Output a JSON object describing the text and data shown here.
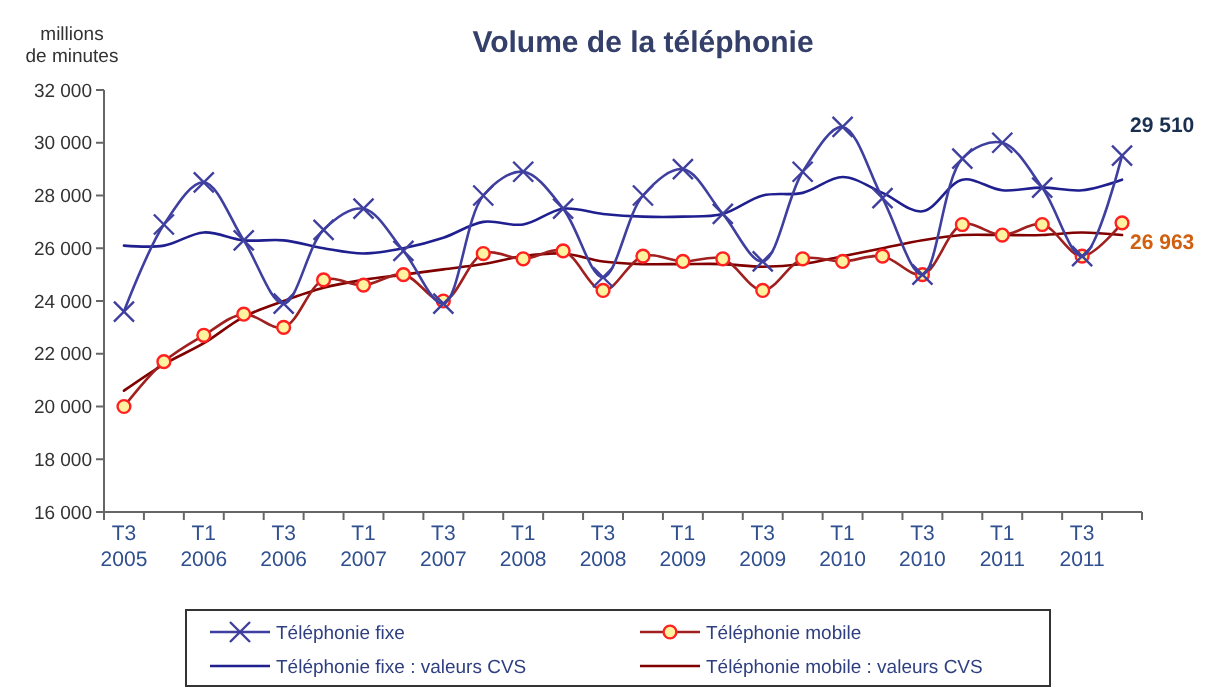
{
  "chart_data": {
    "type": "line",
    "title": "Volume de la téléphonie",
    "ylabel": "millions\nde minutes",
    "categories": [
      "T3\n2005",
      null,
      "T1\n2006",
      null,
      "T3\n2006",
      null,
      "T1\n2007",
      null,
      "T3\n2007",
      null,
      "T1\n2008",
      null,
      "T3\n2008",
      null,
      "T1\n2009",
      null,
      "T3\n2009",
      null,
      "T1\n2010",
      null,
      "T3\n2010",
      null,
      "T1\n2011",
      null,
      "T3\n2011",
      null
    ],
    "series": [
      {
        "name": "Téléphonie fixe",
        "color": "#3f3f9f",
        "marker": "cross",
        "values": [
          23600,
          26900,
          28500,
          26300,
          23900,
          26700,
          27500,
          25900,
          23900,
          28000,
          28900,
          27500,
          24900,
          28000,
          29000,
          27300,
          25500,
          28900,
          30600,
          27900,
          25000,
          29400,
          30000,
          28300,
          25700,
          29510
        ]
      },
      {
        "name": "Téléphonie fixe : valeurs CVS",
        "color": "#1f1f8f",
        "marker": "none",
        "values": [
          26100,
          26100,
          26600,
          26300,
          26300,
          26000,
          25800,
          26000,
          26400,
          27000,
          26900,
          27500,
          27300,
          27200,
          27200,
          27300,
          28000,
          28100,
          28700,
          28100,
          27400,
          28600,
          28200,
          28300,
          28200,
          28600
        ]
      },
      {
        "name": "Téléphonie mobile",
        "color": "#a02020",
        "marker": "circle",
        "values": [
          20000,
          21700,
          22700,
          23500,
          23000,
          24800,
          24600,
          25000,
          24000,
          25800,
          25600,
          25900,
          24400,
          25700,
          25500,
          25600,
          24400,
          25600,
          25500,
          25700,
          25000,
          26900,
          26500,
          26900,
          25700,
          26963
        ]
      },
      {
        "name": "Téléphonie mobile : valeurs CVS",
        "color": "#800000",
        "marker": "none",
        "values": [
          20600,
          21600,
          22400,
          23400,
          24000,
          24500,
          24800,
          25000,
          25200,
          25400,
          25700,
          25800,
          25500,
          25400,
          25400,
          25400,
          25300,
          25400,
          25700,
          26000,
          26300,
          26500,
          26500,
          26500,
          26600,
          26500
        ]
      }
    ],
    "ylim": [
      16000,
      32000
    ],
    "yticks": [
      {
        "value": 16000,
        "label": "16 000"
      },
      {
        "value": 18000,
        "label": "18 000"
      },
      {
        "value": 20000,
        "label": "20 000"
      },
      {
        "value": 22000,
        "label": "22 000"
      },
      {
        "value": 24000,
        "label": "24 000"
      },
      {
        "value": 26000,
        "label": "26 000"
      },
      {
        "value": 28000,
        "label": "28 000"
      },
      {
        "value": 30000,
        "label": "30 000"
      },
      {
        "value": 32000,
        "label": "32 000"
      }
    ],
    "annotations": [
      "29 510",
      "26 963"
    ],
    "grid": false,
    "legend": "bottom"
  }
}
